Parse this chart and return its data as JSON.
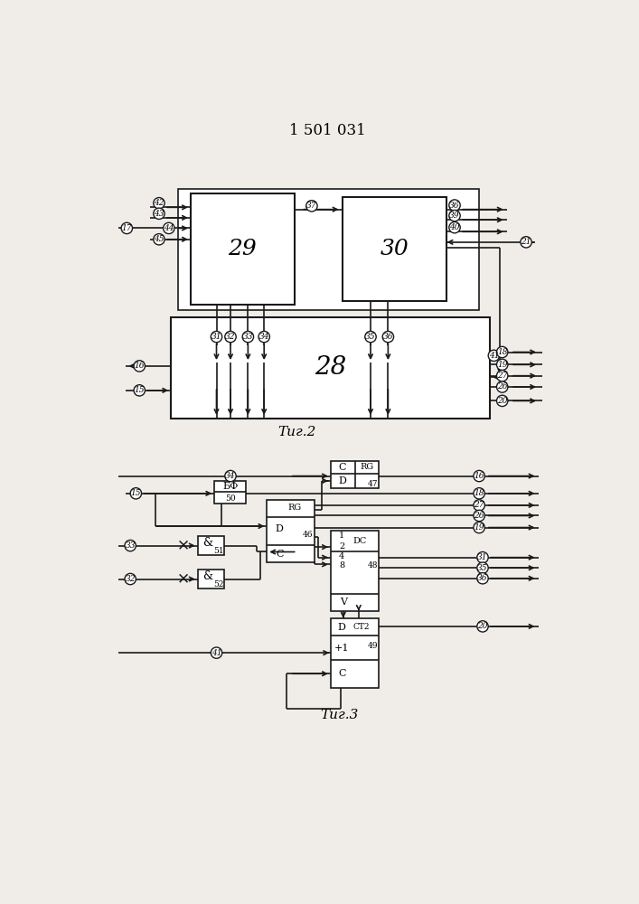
{
  "title": "1 501 031",
  "fig2_label": "Τиг.2",
  "fig3_label": "Τиг.3",
  "bg": "#f0ede8",
  "lc": "#1a1a1a"
}
